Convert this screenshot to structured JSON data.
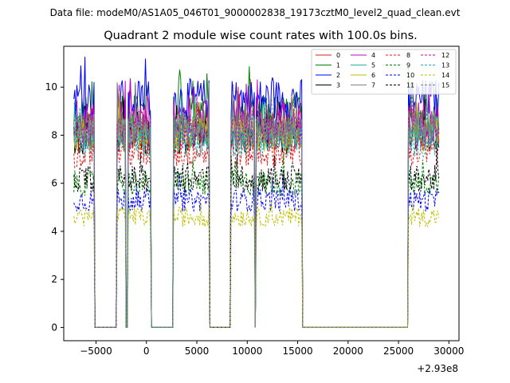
{
  "header": {
    "datafile": "Data file: modeM0/AS1A05_046T01_9000002838_19173cztM0_level2_quad_clean.evt"
  },
  "chart_data": {
    "type": "line",
    "title": "Quadrant 2 module wise count rates with 100.0s bins.",
    "xlabel": "",
    "ylabel": "",
    "x_offset_label": "+2.93e8",
    "xlim": [
      -8200,
      31000
    ],
    "ylim": [
      -0.55,
      11.7
    ],
    "x_ticks": [
      -5000,
      0,
      5000,
      10000,
      15000,
      20000,
      25000,
      30000
    ],
    "x_tick_labels": [
      "−5000",
      "0",
      "5000",
      "10000",
      "15000",
      "20000",
      "25000",
      "30000"
    ],
    "y_ticks": [
      0,
      2,
      4,
      6,
      8,
      10
    ],
    "y_tick_labels": [
      "0",
      "2",
      "4",
      "6",
      "8",
      "10"
    ],
    "legend_position": "top-right",
    "x_start": -7200,
    "x_end": 29000,
    "bin_size": 100,
    "active_segments": [
      [
        -7200,
        -5200
      ],
      [
        -2900,
        -2100
      ],
      [
        -1800,
        400
      ],
      [
        2700,
        4500
      ],
      [
        4500,
        6200
      ],
      [
        8400,
        10700
      ],
      [
        10900,
        11800
      ],
      [
        11900,
        14600
      ],
      [
        14700,
        15400
      ],
      [
        26000,
        29000
      ]
    ],
    "series": [
      {
        "name": "0",
        "level": 8.4,
        "color": "#e41a1c",
        "dash": false
      },
      {
        "name": "1",
        "level": 8.9,
        "color": "#008000",
        "dash": false
      },
      {
        "name": "2",
        "level": 9.5,
        "color": "#0000ff",
        "dash": false
      },
      {
        "name": "3",
        "level": 7.9,
        "color": "#000000",
        "dash": false
      },
      {
        "name": "4",
        "level": 8.7,
        "color": "#c000c0",
        "dash": false
      },
      {
        "name": "5",
        "level": 8.1,
        "color": "#20b2aa",
        "dash": false
      },
      {
        "name": "6",
        "level": 8.0,
        "color": "#bfbf00",
        "dash": false
      },
      {
        "name": "7",
        "level": 8.3,
        "color": "#808080",
        "dash": false
      },
      {
        "name": "8",
        "level": 7.3,
        "color": "#e41a1c",
        "dash": true
      },
      {
        "name": "9",
        "level": 6.0,
        "color": "#008000",
        "dash": true
      },
      {
        "name": "10",
        "level": 5.3,
        "color": "#0000ff",
        "dash": true
      },
      {
        "name": "11",
        "level": 6.2,
        "color": "#000000",
        "dash": true
      },
      {
        "name": "12",
        "level": 8.1,
        "color": "#c000c0",
        "dash": true
      },
      {
        "name": "13",
        "level": 7.8,
        "color": "#20b2aa",
        "dash": true
      },
      {
        "name": "14",
        "level": 4.6,
        "color": "#bfbf00",
        "dash": true
      },
      {
        "name": "15",
        "level": 8.2,
        "color": "#808080",
        "dash": true
      }
    ]
  }
}
